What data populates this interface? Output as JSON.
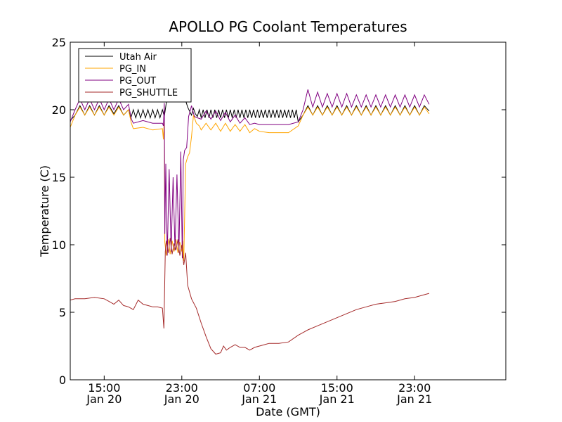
{
  "chart_data": {
    "type": "line",
    "title": "APOLLO PG Coolant Temperatures",
    "xlabel": "Date (GMT)",
    "ylabel": "Temperature (C)",
    "xlim": [
      11.5,
      56.4
    ],
    "ylim": [
      0,
      25
    ],
    "x_unit": "hours since 00:00 Jan 20 (GMT)",
    "grid": false,
    "legend_position": "top-left",
    "yticks": [
      {
        "value": 0,
        "label": "0"
      },
      {
        "value": 5,
        "label": "5"
      },
      {
        "value": 10,
        "label": "10"
      },
      {
        "value": 15,
        "label": "15"
      },
      {
        "value": 20,
        "label": "20"
      },
      {
        "value": 25,
        "label": "25"
      }
    ],
    "xticks": [
      {
        "value": 15,
        "time": "15:00",
        "date": "Jan 20"
      },
      {
        "value": 23,
        "time": "23:00",
        "date": "Jan 20"
      },
      {
        "value": 31,
        "time": "07:00",
        "date": "Jan 21"
      },
      {
        "value": 39,
        "time": "15:00",
        "date": "Jan 21"
      },
      {
        "value": 47,
        "time": "23:00",
        "date": "Jan 21"
      }
    ],
    "series": [
      {
        "name": "Utah Air",
        "color": "#000000",
        "x": [
          11.5,
          12.0,
          12.5,
          13.0,
          13.5,
          14.0,
          14.5,
          15.0,
          15.5,
          16.0,
          16.5,
          17.0,
          17.5,
          17.75,
          18.0,
          18.25,
          18.5,
          18.75,
          19.0,
          19.25,
          19.5,
          19.75,
          20.0,
          20.25,
          20.5,
          20.75,
          21.0,
          21.2,
          21.5,
          22.0,
          22.5,
          23.0,
          23.3,
          23.6,
          24.0,
          24.2,
          24.4,
          24.6,
          24.8,
          25.0,
          25.2,
          25.4,
          25.6,
          25.8,
          26.0,
          26.2,
          26.4,
          26.6,
          26.8,
          27.0,
          27.2,
          27.4,
          27.6,
          27.8,
          28.0,
          28.2,
          28.4,
          28.6,
          28.8,
          29.0,
          29.2,
          29.4,
          29.6,
          29.8,
          30.0,
          30.2,
          30.4,
          30.6,
          30.8,
          31.0,
          31.2,
          31.4,
          31.6,
          31.8,
          32.0,
          32.2,
          32.4,
          32.6,
          32.8,
          33.0,
          33.2,
          33.4,
          33.6,
          33.8,
          34.0,
          34.2,
          34.4,
          34.6,
          34.8,
          35.0,
          35.5,
          36.0,
          36.5,
          37.0,
          37.5,
          38.0,
          38.5,
          39.0,
          39.5,
          40.0,
          40.5,
          41.0,
          41.5,
          42.0,
          42.5,
          43.0,
          43.5,
          44.0,
          44.5,
          45.0,
          45.5,
          46.0,
          46.5,
          47.0,
          47.5,
          48.0,
          48.5
        ],
        "y": [
          19.2,
          19.6,
          20.3,
          19.6,
          20.3,
          19.6,
          20.3,
          19.6,
          20.3,
          19.7,
          20.3,
          19.6,
          20.0,
          19.4,
          20.0,
          19.4,
          20.0,
          19.4,
          20.0,
          19.4,
          20.0,
          19.4,
          20.0,
          19.4,
          20.0,
          19.4,
          20.0,
          19.5,
          21.0,
          20.6,
          21.0,
          20.6,
          20.9,
          20.2,
          19.6,
          20.1,
          19.7,
          19.5,
          20.0,
          19.4,
          20.0,
          19.4,
          20.0,
          19.4,
          20.0,
          19.4,
          20.0,
          19.4,
          20.0,
          19.4,
          20.0,
          19.4,
          20.0,
          19.4,
          20.0,
          19.4,
          20.0,
          19.4,
          20.0,
          19.4,
          20.0,
          19.4,
          20.0,
          19.4,
          20.0,
          19.4,
          20.0,
          19.4,
          20.0,
          19.4,
          20.0,
          19.4,
          20.0,
          19.4,
          20.0,
          19.4,
          20.0,
          19.4,
          20.0,
          19.4,
          20.0,
          19.4,
          20.0,
          19.4,
          20.0,
          19.4,
          20.0,
          19.4,
          20.0,
          19.1,
          19.6,
          20.3,
          19.6,
          20.3,
          19.6,
          20.3,
          19.6,
          20.3,
          19.6,
          20.3,
          19.6,
          20.3,
          19.6,
          20.3,
          19.6,
          20.3,
          19.6,
          20.3,
          19.6,
          20.3,
          19.6,
          20.3,
          19.6,
          20.3,
          19.6,
          20.3,
          19.9
        ]
      },
      {
        "name": "PG_IN",
        "color": "#ffa500",
        "x": [
          11.5,
          12.0,
          12.5,
          13.0,
          13.5,
          14.0,
          14.5,
          15.0,
          15.5,
          16.0,
          16.5,
          17.0,
          17.5,
          17.8,
          18.0,
          19.0,
          20.0,
          21.0,
          21.1,
          21.2,
          21.25,
          21.4,
          21.6,
          21.8,
          22.0,
          22.2,
          22.4,
          22.6,
          22.8,
          23.0,
          23.1,
          23.2,
          23.4,
          23.6,
          23.8,
          24.0,
          24.2,
          24.5,
          24.8,
          25.0,
          25.5,
          26.0,
          26.5,
          27.0,
          27.5,
          28.0,
          28.5,
          29.0,
          29.5,
          30.0,
          30.5,
          31.0,
          32.0,
          33.0,
          34.0,
          35.0,
          35.5,
          36.0,
          36.5,
          37.0,
          37.5,
          38.0,
          38.5,
          39.0,
          39.5,
          40.0,
          40.5,
          41.0,
          41.5,
          42.0,
          42.5,
          43.0,
          43.5,
          44.0,
          44.5,
          45.0,
          45.5,
          46.0,
          46.5,
          47.0,
          47.5,
          48.0,
          48.5
        ],
        "y": [
          18.7,
          19.6,
          20.2,
          19.6,
          20.2,
          19.6,
          20.2,
          19.6,
          20.2,
          19.6,
          20.2,
          19.6,
          20.0,
          19.0,
          18.6,
          18.7,
          18.5,
          18.6,
          17.8,
          19.5,
          10.2,
          9.2,
          10.4,
          9.3,
          10.3,
          9.5,
          10.4,
          9.4,
          10.2,
          9.5,
          10.3,
          8.8,
          16.0,
          16.5,
          16.8,
          18.0,
          19.6,
          19.0,
          18.8,
          18.5,
          19.0,
          18.5,
          19.0,
          18.4,
          19.0,
          18.4,
          18.9,
          18.4,
          18.9,
          18.3,
          18.6,
          18.4,
          18.3,
          18.3,
          18.3,
          18.8,
          19.6,
          20.2,
          19.6,
          20.2,
          19.6,
          20.2,
          19.6,
          20.2,
          19.6,
          20.2,
          19.6,
          20.2,
          19.6,
          20.2,
          19.6,
          20.2,
          19.6,
          20.2,
          19.6,
          20.2,
          19.6,
          20.2,
          19.6,
          20.2,
          19.6,
          20.2,
          19.7
        ]
      },
      {
        "name": "PG_OUT",
        "color": "#800080",
        "x": [
          11.5,
          12.0,
          12.5,
          13.0,
          13.5,
          14.0,
          14.5,
          15.0,
          15.5,
          16.0,
          16.5,
          17.0,
          17.5,
          17.8,
          18.0,
          19.0,
          20.0,
          21.0,
          21.1,
          21.2,
          21.25,
          21.35,
          21.5,
          21.7,
          21.9,
          22.1,
          22.3,
          22.5,
          22.7,
          22.9,
          23.05,
          23.15,
          23.3,
          23.5,
          23.7,
          23.9,
          24.0,
          24.3,
          24.6,
          25.0,
          25.5,
          26.0,
          26.5,
          27.0,
          27.5,
          28.0,
          28.5,
          29.0,
          29.5,
          30.0,
          30.5,
          31.0,
          32.0,
          33.0,
          34.0,
          35.0,
          35.5,
          36.0,
          36.5,
          37.0,
          37.5,
          38.0,
          38.5,
          39.0,
          39.5,
          40.0,
          40.5,
          41.0,
          41.5,
          42.0,
          42.5,
          43.0,
          43.5,
          44.0,
          44.5,
          45.0,
          45.5,
          46.0,
          46.5,
          47.0,
          47.5,
          48.0,
          48.5
        ],
        "y": [
          19.1,
          20.0,
          20.8,
          20.0,
          20.8,
          20.0,
          20.8,
          20.0,
          20.8,
          20.0,
          20.8,
          20.0,
          20.4,
          19.3,
          19.0,
          19.2,
          19.0,
          19.0,
          18.8,
          20.5,
          10.8,
          16.0,
          9.2,
          15.6,
          9.5,
          15.0,
          9.6,
          15.2,
          9.4,
          16.9,
          9.0,
          16.3,
          17.0,
          17.2,
          19.5,
          20.0,
          20.3,
          19.5,
          19.4,
          19.3,
          19.9,
          19.3,
          19.9,
          19.2,
          19.8,
          19.1,
          19.6,
          19.0,
          19.4,
          18.9,
          19.0,
          18.9,
          18.9,
          18.9,
          18.9,
          19.1,
          20.0,
          21.5,
          20.2,
          21.3,
          20.2,
          21.2,
          20.2,
          21.2,
          20.2,
          21.2,
          20.2,
          21.1,
          20.2,
          21.1,
          20.2,
          21.1,
          20.2,
          21.1,
          20.2,
          21.1,
          20.2,
          21.1,
          20.2,
          21.1,
          20.2,
          21.1,
          20.4
        ]
      },
      {
        "name": "PG_SHUTTLE",
        "color": "#a52a2a",
        "x": [
          11.5,
          12.0,
          13.0,
          14.0,
          15.0,
          15.5,
          16.0,
          16.5,
          17.0,
          17.5,
          18.0,
          18.5,
          19.0,
          19.5,
          20.0,
          20.5,
          21.0,
          21.15,
          21.2,
          21.3,
          21.4,
          21.6,
          21.8,
          22.0,
          22.2,
          22.4,
          22.6,
          22.8,
          23.0,
          23.2,
          23.4,
          23.6,
          24.0,
          24.5,
          25.0,
          25.5,
          26.0,
          26.5,
          27.0,
          27.3,
          27.6,
          28.0,
          28.5,
          29.0,
          29.5,
          30.0,
          30.5,
          31.0,
          31.5,
          32.0,
          33.0,
          34.0,
          35.0,
          35.5,
          36.0,
          37.0,
          38.0,
          39.0,
          40.0,
          41.0,
          42.0,
          43.0,
          44.0,
          45.0,
          46.0,
          47.0,
          48.0,
          48.5
        ],
        "y": [
          5.9,
          6.0,
          6.0,
          6.1,
          6.0,
          5.8,
          5.6,
          5.9,
          5.5,
          5.4,
          5.2,
          5.9,
          5.6,
          5.5,
          5.4,
          5.4,
          5.3,
          3.8,
          5.5,
          9.5,
          10.3,
          9.4,
          10.5,
          9.3,
          10.1,
          9.6,
          10.4,
          9.2,
          10.0,
          8.5,
          9.4,
          7.0,
          6.0,
          5.3,
          4.2,
          3.2,
          2.3,
          1.9,
          2.0,
          2.5,
          2.2,
          2.4,
          2.6,
          2.4,
          2.4,
          2.2,
          2.4,
          2.5,
          2.6,
          2.7,
          2.7,
          2.8,
          3.3,
          3.5,
          3.7,
          4.0,
          4.3,
          4.6,
          4.9,
          5.2,
          5.4,
          5.6,
          5.7,
          5.8,
          6.0,
          6.1,
          6.3,
          6.4
        ]
      }
    ]
  }
}
